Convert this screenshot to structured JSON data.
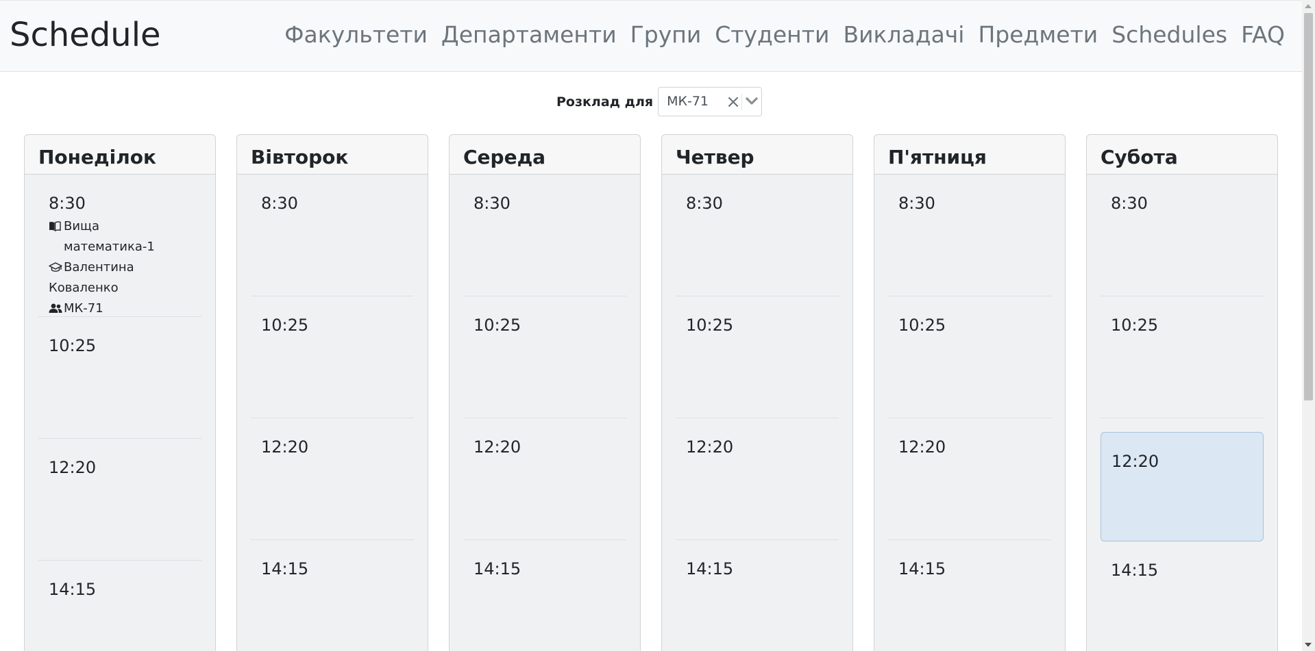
{
  "navbar": {
    "brand": "Schedule",
    "links": [
      "Факультети",
      "Департаменти",
      "Групи",
      "Студенти",
      "Викладачі",
      "Предмети",
      "Schedules",
      "FAQ"
    ]
  },
  "selector": {
    "label": "Розклад для",
    "value": "МК-71",
    "clear_icon": "×"
  },
  "days": [
    {
      "name": "Понеділок",
      "slots": [
        {
          "time": "8:30",
          "lesson": {
            "subject": "Вища математика-1",
            "teacher": "Валентина Коваленко",
            "group": "МК-71"
          }
        },
        {
          "time": "10:25"
        },
        {
          "time": "12:20"
        },
        {
          "time": "14:15"
        }
      ]
    },
    {
      "name": "Вівторок",
      "slots": [
        {
          "time": "8:30"
        },
        {
          "time": "10:25"
        },
        {
          "time": "12:20"
        },
        {
          "time": "14:15"
        }
      ]
    },
    {
      "name": "Середа",
      "slots": [
        {
          "time": "8:30"
        },
        {
          "time": "10:25"
        },
        {
          "time": "12:20"
        },
        {
          "time": "14:15"
        }
      ]
    },
    {
      "name": "Четвер",
      "slots": [
        {
          "time": "8:30"
        },
        {
          "time": "10:25"
        },
        {
          "time": "12:20"
        },
        {
          "time": "14:15"
        }
      ]
    },
    {
      "name": "П'ятниця",
      "slots": [
        {
          "time": "8:30"
        },
        {
          "time": "10:25"
        },
        {
          "time": "12:20"
        },
        {
          "time": "14:15"
        }
      ]
    },
    {
      "name": "Субота",
      "slots": [
        {
          "time": "8:30"
        },
        {
          "time": "10:25"
        },
        {
          "time": "12:20",
          "selected": true
        },
        {
          "time": "14:15"
        }
      ]
    }
  ],
  "icons": {
    "subject": "book-icon",
    "teacher": "graduation-cap-icon",
    "group": "users-icon",
    "dropdown": "chevron-down-icon",
    "clear": "close-icon"
  },
  "colors": {
    "navbar_bg": "#f8f9fa",
    "nav_link": "#6c757d",
    "day_bg": "#f0f1f3",
    "selected_slot_bg": "#dce7f4"
  }
}
